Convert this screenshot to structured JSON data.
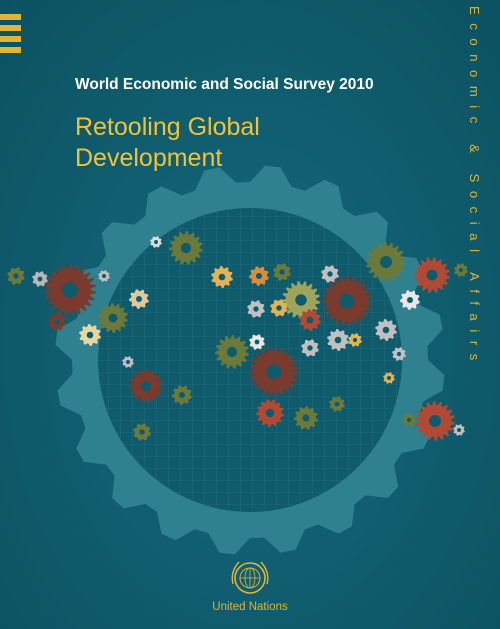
{
  "cover": {
    "series_label": "Economic & Social Affairs",
    "survey_title": "World Economic and Social Survey 2010",
    "title_line1": "Retooling Global",
    "title_line2": "Development",
    "publisher": "United Nations"
  },
  "icons": {
    "big_gear": "gear-icon",
    "map_gears": "gear-icon",
    "emblem": "un-emblem-icon",
    "stripes": "stripes-icon"
  },
  "colors": {
    "background": "#0f5a6b",
    "accent_gold": "#e1b439",
    "title_gold": "#f0c33c",
    "text_white": "#ffffff"
  }
}
